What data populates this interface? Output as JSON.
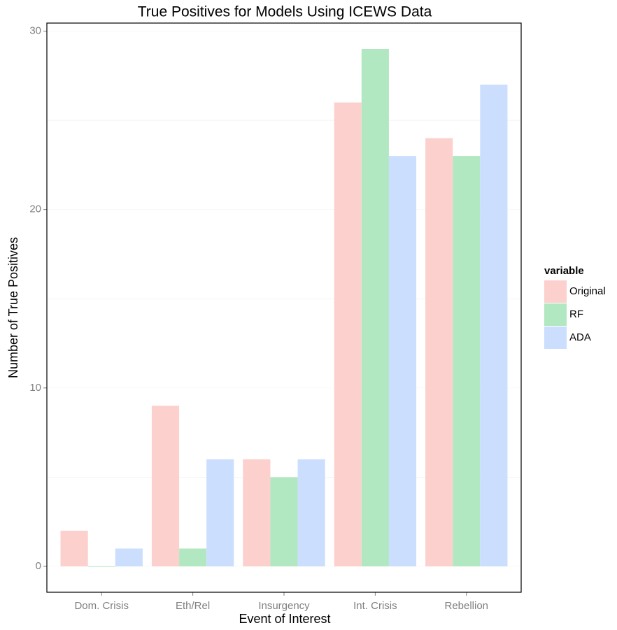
{
  "chart_data": {
    "type": "bar",
    "title": "True Positives for Models Using ICEWS Data",
    "x_label": "Event of Interest",
    "y_label": "Number of True Positives",
    "legend_title": "variable",
    "categories": [
      "Dom. Crisis",
      "Eth/Rel",
      "Insurgency",
      "Int. Crisis",
      "Rebellion"
    ],
    "series": [
      {
        "name": "Original",
        "color": "#fbd0cd",
        "values": [
          2,
          9,
          6,
          26,
          24
        ]
      },
      {
        "name": "RF",
        "color": "#b2e8c1",
        "values": [
          0,
          1,
          5,
          29,
          23
        ]
      },
      {
        "name": "ADA",
        "color": "#ccdefd",
        "values": [
          1,
          6,
          6,
          23,
          27
        ]
      }
    ],
    "ylim": [
      -1.45,
      30.45
    ],
    "yticks": [
      0,
      10,
      20,
      30
    ],
    "minor_grid": [
      5,
      15,
      25
    ],
    "legend": "right"
  }
}
